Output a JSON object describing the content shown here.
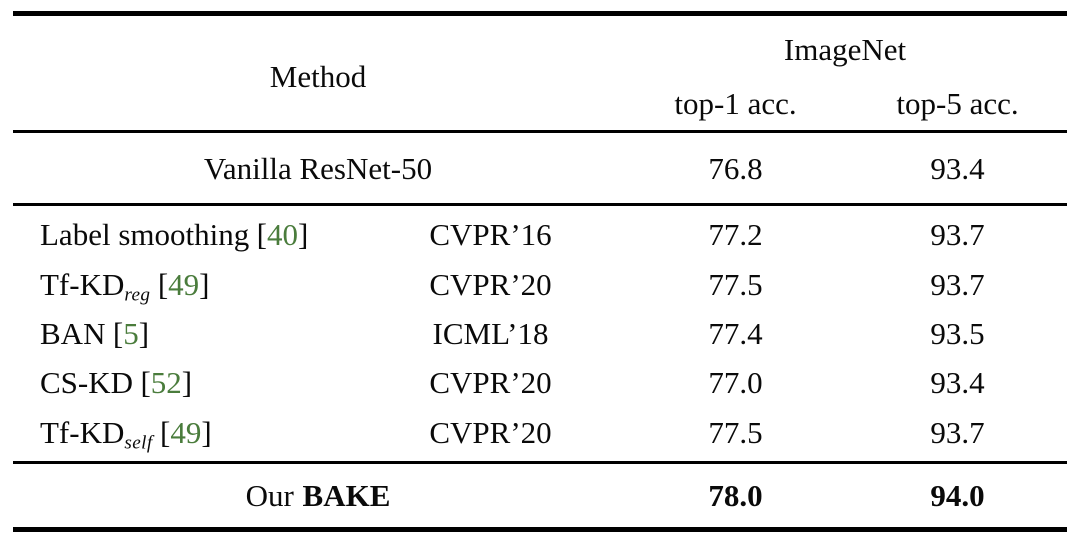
{
  "table": {
    "header": {
      "method_label": "Method",
      "group_label": "ImageNet",
      "top1_label": "top-1 acc.",
      "top5_label": "top-5 acc."
    },
    "punct": {
      "cite_open": "[",
      "cite_close": "]"
    },
    "baseline": {
      "method": "Vanilla ResNet-50",
      "top1": "76.8",
      "top5": "93.4"
    },
    "rows": [
      {
        "method": "Label smoothing",
        "sub": "",
        "cite": "40",
        "venue": "CVPR’16",
        "top1": "77.2",
        "top5": "93.7"
      },
      {
        "method": "Tf-KD",
        "sub": "reg",
        "cite": "49",
        "venue": "CVPR’20",
        "top1": "77.5",
        "top5": "93.7"
      },
      {
        "method": "BAN",
        "sub": "",
        "cite": "5",
        "venue": "ICML’18",
        "top1": "77.4",
        "top5": "93.5"
      },
      {
        "method": "CS-KD",
        "sub": "",
        "cite": "52",
        "venue": "CVPR’20",
        "top1": "77.0",
        "top5": "93.4"
      },
      {
        "method": "Tf-KD",
        "sub": "self",
        "cite": "49",
        "venue": "CVPR’20",
        "top1": "77.5",
        "top5": "93.7"
      }
    ],
    "ours": {
      "prefix": "Our",
      "name": "BAKE",
      "top1": "78.0",
      "top5": "94.0"
    },
    "colors": {
      "citation_link": "#4a7c3c",
      "text": "#0a0a0a",
      "rule": "#000000",
      "background": "#ffffff"
    }
  }
}
